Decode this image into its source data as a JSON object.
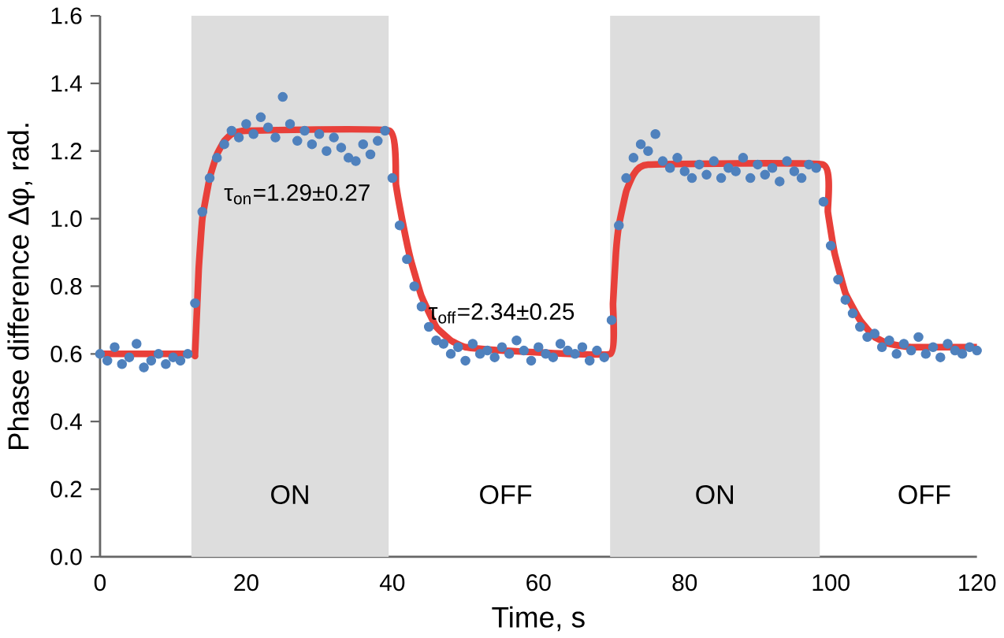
{
  "chart_data": {
    "type": "scatter",
    "xlabel": "Time, s",
    "ylabel": "Phase difference Δφ, rad.",
    "xlim": [
      0,
      120
    ],
    "xticks": [
      0,
      20,
      40,
      60,
      80,
      100,
      120
    ],
    "ylim": [
      0,
      1.6
    ],
    "yticks": [
      {
        "value": 0,
        "label": "0.0"
      },
      {
        "value": 0.2,
        "label": "0.2"
      },
      {
        "value": 0.4,
        "label": "0.4"
      },
      {
        "value": 0.6,
        "label": "0.6"
      },
      {
        "value": 0.8,
        "label": "0.8"
      },
      {
        "value": 1.0,
        "label": "1.0"
      },
      {
        "value": 1.2,
        "label": "1.2"
      },
      {
        "value": 1.4,
        "label": "1.4"
      },
      {
        "value": 1.6,
        "label": "1.6"
      }
    ],
    "bands": [
      {
        "axis": "x",
        "from": 12.5,
        "to": 39.5,
        "label": "ON",
        "color": "#dddddd"
      },
      {
        "axis": "x",
        "from": 69.8,
        "to": 98.5,
        "label": "ON",
        "color": "#dddddd"
      }
    ],
    "annotations": [
      "τ$_{on}$=1.29±0.27",
      "τ$_{off}$=2.34±0.25",
      "OFF",
      "OFF"
    ],
    "series": [
      {
        "type": "line",
        "color": "#e8403a",
        "marker": "none",
        "x": [
          0,
          12.5,
          13,
          13.5,
          14,
          15,
          16,
          17,
          18,
          20,
          39.6,
          40.5,
          41.5,
          42.5,
          44,
          46,
          48,
          50,
          55,
          69.8,
          70.2,
          70.6,
          71,
          72,
          73,
          75,
          98.9,
          99.6,
          100.5,
          102,
          104,
          106,
          108,
          111,
          120
        ],
        "values": [
          0.6,
          0.6,
          0.6,
          0.85,
          1.0,
          1.12,
          1.19,
          1.23,
          1.25,
          1.26,
          1.26,
          1.1,
          0.98,
          0.88,
          0.77,
          0.68,
          0.64,
          0.62,
          0.61,
          0.6,
          0.75,
          0.9,
          0.98,
          1.08,
          1.13,
          1.16,
          1.16,
          1.02,
          0.9,
          0.78,
          0.7,
          0.65,
          0.63,
          0.62,
          0.62
        ]
      },
      {
        "type": "scatter",
        "color": "#4f81bd",
        "marker": "circle",
        "x": [
          0,
          1,
          2,
          3,
          4,
          5,
          6,
          7,
          8,
          9,
          10,
          11,
          12,
          13,
          14,
          15,
          16,
          17,
          18,
          19,
          20,
          21,
          22,
          23,
          24,
          25,
          26,
          27,
          28,
          29,
          30,
          31,
          32,
          33,
          34,
          35,
          36,
          37,
          38,
          39,
          40,
          41,
          42,
          43,
          44,
          45,
          46,
          47,
          48,
          49,
          50,
          51,
          52,
          53,
          54,
          55,
          56,
          57,
          58,
          59,
          60,
          61,
          62,
          63,
          64,
          65,
          66,
          67,
          68,
          69,
          70,
          71,
          72,
          73,
          74,
          75,
          76,
          77,
          78,
          79,
          80,
          81,
          82,
          83,
          84,
          85,
          86,
          87,
          88,
          89,
          90,
          91,
          92,
          93,
          94,
          95,
          96,
          97,
          98,
          99,
          100,
          101,
          102,
          103,
          104,
          105,
          106,
          107,
          108,
          109,
          110,
          111,
          112,
          113,
          114,
          115,
          116,
          117,
          118,
          119,
          120
        ],
        "values": [
          0.6,
          0.58,
          0.62,
          0.57,
          0.59,
          0.63,
          0.56,
          0.58,
          0.6,
          0.57,
          0.59,
          0.58,
          0.6,
          0.75,
          1.02,
          1.12,
          1.18,
          1.22,
          1.26,
          1.24,
          1.28,
          1.25,
          1.3,
          1.27,
          1.24,
          1.36,
          1.28,
          1.23,
          1.26,
          1.22,
          1.25,
          1.2,
          1.24,
          1.21,
          1.18,
          1.17,
          1.22,
          1.19,
          1.23,
          1.26,
          1.12,
          0.98,
          0.88,
          0.8,
          0.74,
          0.68,
          0.64,
          0.63,
          0.6,
          0.62,
          0.58,
          0.63,
          0.6,
          0.61,
          0.59,
          0.62,
          0.6,
          0.64,
          0.61,
          0.58,
          0.62,
          0.6,
          0.59,
          0.63,
          0.61,
          0.6,
          0.62,
          0.58,
          0.61,
          0.59,
          0.7,
          0.98,
          1.12,
          1.18,
          1.22,
          1.2,
          1.25,
          1.17,
          1.15,
          1.18,
          1.14,
          1.12,
          1.16,
          1.13,
          1.17,
          1.12,
          1.15,
          1.14,
          1.18,
          1.12,
          1.16,
          1.13,
          1.15,
          1.11,
          1.17,
          1.14,
          1.12,
          1.16,
          1.15,
          1.05,
          0.92,
          0.82,
          0.76,
          0.72,
          0.68,
          0.65,
          0.66,
          0.62,
          0.64,
          0.6,
          0.63,
          0.61,
          0.65,
          0.6,
          0.62,
          0.59,
          0.63,
          0.61,
          0.6,
          0.62,
          0.61
        ]
      }
    ]
  }
}
